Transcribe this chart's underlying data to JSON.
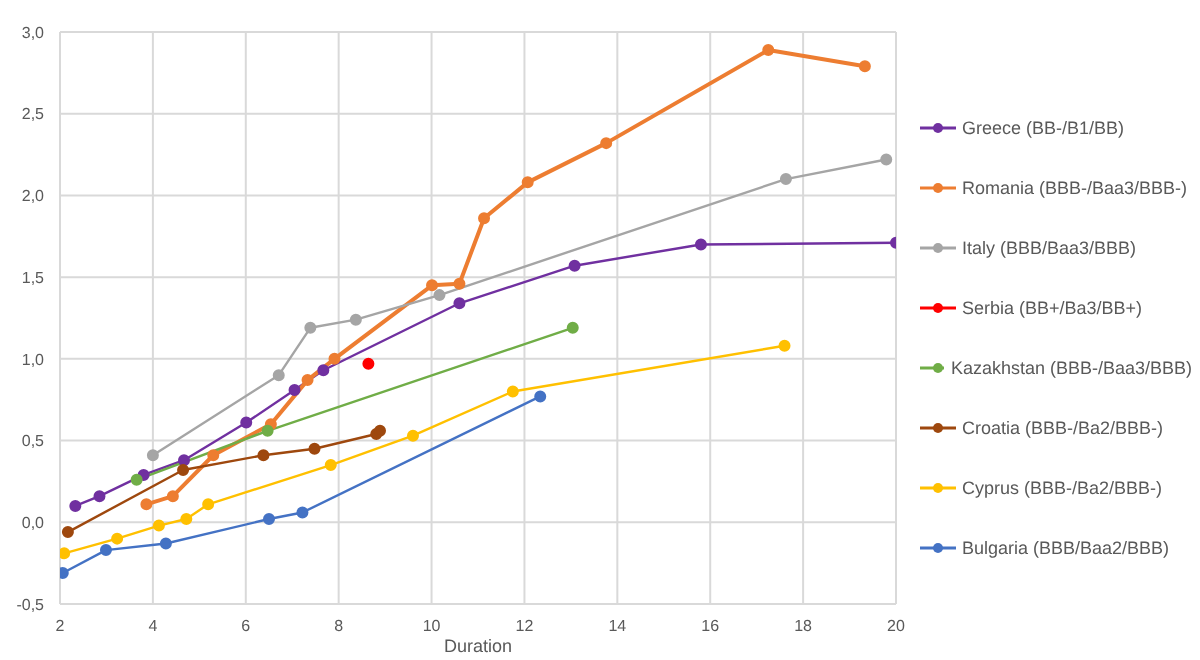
{
  "chart_data": {
    "type": "line",
    "xlabel": "Duration",
    "xlim": [
      2,
      20
    ],
    "xticks": [
      2,
      4,
      6,
      8,
      10,
      12,
      14,
      16,
      18,
      20
    ],
    "ylim": [
      -0.5,
      3
    ],
    "yticks": [
      {
        "value": -0.5,
        "label": "-0,5"
      },
      {
        "value": 0,
        "label": "0,0"
      },
      {
        "value": 0.5,
        "label": "0,5"
      },
      {
        "value": 1,
        "label": "1,0"
      },
      {
        "value": 1.5,
        "label": "1,5"
      },
      {
        "value": 2,
        "label": "2,0"
      },
      {
        "value": 2.5,
        "label": "2,5"
      },
      {
        "value": 3,
        "label": "3,0"
      }
    ],
    "grid": true,
    "legend": "right",
    "marker": "circle",
    "series": [
      {
        "name": "Greece (BB-/B1/BB)",
        "color": "#7030a0",
        "x": [
          2.33,
          2.85,
          3.8,
          4.67,
          6.01,
          7.05,
          7.67,
          10.6,
          13.08,
          15.8,
          20.0
        ],
        "values": [
          0.1,
          0.16,
          0.29,
          0.38,
          0.61,
          0.81,
          0.93,
          1.34,
          1.57,
          1.7,
          1.71
        ]
      },
      {
        "name": "Romania (BBB-/Baa3/BBB-)",
        "color": "#ed7d31",
        "x": [
          3.86,
          4.43,
          5.3,
          6.54,
          7.33,
          7.91,
          10.01,
          10.6,
          11.13,
          12.07,
          13.76,
          17.25,
          19.33
        ],
        "values": [
          0.11,
          0.16,
          0.41,
          0.6,
          0.87,
          1.0,
          1.45,
          1.46,
          1.86,
          2.08,
          2.32,
          2.89,
          2.79
        ]
      },
      {
        "name": "Italy (BBB/Baa3/BBB)",
        "color": "#a5a5a5",
        "x": [
          4.0,
          6.71,
          7.39,
          8.37,
          10.17,
          17.63,
          19.79
        ],
        "values": [
          0.41,
          0.9,
          1.19,
          1.24,
          1.39,
          2.1,
          2.22
        ]
      },
      {
        "name": "Serbia (BB+/Ba3/BB+)",
        "color": "#ff0000",
        "x": [
          8.64
        ],
        "values": [
          0.97
        ]
      },
      {
        "name": "Kazakhstan (BBB-/Baa3/BBB)",
        "color": "#70ad47",
        "x": [
          3.65,
          6.47,
          13.04
        ],
        "values": [
          0.26,
          0.56,
          1.19
        ]
      },
      {
        "name": "Croatia (BBB-/Ba2/BBB-)",
        "color": "#9e480e",
        "x": [
          2.17,
          4.65,
          6.38,
          7.48,
          8.81,
          8.89
        ],
        "values": [
          -0.06,
          0.32,
          0.41,
          0.45,
          0.54,
          0.56
        ]
      },
      {
        "name": "Cyprus (BBB-/Ba2/BBB-)",
        "color": "#ffc000",
        "x": [
          2.09,
          3.23,
          4.13,
          4.72,
          5.19,
          7.83,
          9.6,
          11.75,
          17.6
        ],
        "values": [
          -0.19,
          -0.1,
          -0.02,
          0.02,
          0.11,
          0.35,
          0.53,
          0.8,
          1.08
        ]
      },
      {
        "name": "Bulgaria (BBB/Baa2/BBB)",
        "color": "#4472c4",
        "x": [
          2.06,
          2.99,
          4.28,
          6.5,
          7.22,
          12.34
        ],
        "values": [
          -0.31,
          -0.17,
          -0.13,
          0.02,
          0.06,
          0.77
        ]
      }
    ]
  }
}
